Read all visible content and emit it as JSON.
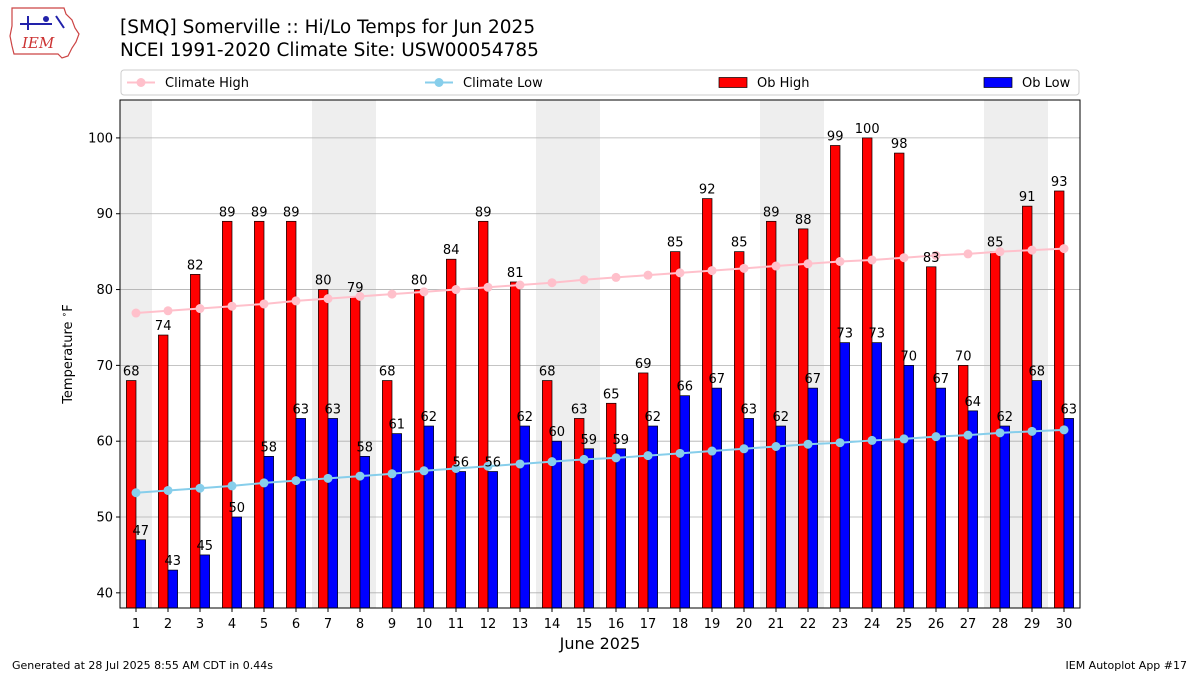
{
  "header": {
    "logo_text": "IEM",
    "title_line1": "[SMQ] Somerville :: Hi/Lo Temps for Jun 2025",
    "title_line2": "NCEI 1991-2020 Climate Site: USW00054785"
  },
  "footer": {
    "left": "Generated at 28 Jul 2025 8:55 AM CDT in 0.44s",
    "right": "IEM Autoplot App #17"
  },
  "colors": {
    "climate_high": "#ffc0cb",
    "climate_low": "#87ceeb",
    "ob_high": "#ff0000",
    "ob_low": "#0000ff",
    "weekend_band": "#eeeeee",
    "grid": "#b0b0b0"
  },
  "chart_data": {
    "type": "bar",
    "xlabel": "June 2025",
    "ylabel": "Temperature $^\\circ$F",
    "ylim": [
      38,
      105
    ],
    "yticks": [
      40,
      50,
      60,
      70,
      80,
      90,
      100
    ],
    "grid": "horizontal",
    "legend": "top, above plot",
    "x": [
      1,
      2,
      3,
      4,
      5,
      6,
      7,
      8,
      9,
      10,
      11,
      12,
      13,
      14,
      15,
      16,
      17,
      18,
      19,
      20,
      21,
      22,
      23,
      24,
      25,
      26,
      27,
      28,
      29,
      30
    ],
    "weekend_days": [
      1,
      7,
      8,
      14,
      15,
      21,
      22,
      28,
      29
    ],
    "series": [
      {
        "name": "Climate High",
        "kind": "line",
        "values": [
          76.9,
          77.2,
          77.5,
          77.8,
          78.1,
          78.5,
          78.8,
          79.1,
          79.4,
          79.7,
          80.0,
          80.3,
          80.6,
          80.9,
          81.3,
          81.6,
          81.9,
          82.2,
          82.5,
          82.8,
          83.1,
          83.4,
          83.7,
          83.9,
          84.2,
          84.5,
          84.7,
          85.0,
          85.2,
          85.4
        ]
      },
      {
        "name": "Climate Low",
        "kind": "line",
        "values": [
          53.2,
          53.5,
          53.8,
          54.1,
          54.5,
          54.8,
          55.1,
          55.4,
          55.7,
          56.1,
          56.4,
          56.7,
          57.0,
          57.3,
          57.6,
          57.8,
          58.1,
          58.4,
          58.7,
          59.0,
          59.3,
          59.6,
          59.8,
          60.1,
          60.3,
          60.6,
          60.8,
          61.1,
          61.3,
          61.5
        ]
      },
      {
        "name": "Ob High",
        "kind": "bar",
        "values": [
          68,
          74,
          82,
          89,
          89,
          89,
          80,
          79,
          68,
          80,
          84,
          89,
          81,
          68,
          63,
          65,
          69,
          85,
          92,
          85,
          89,
          88,
          99,
          100,
          98,
          83,
          70,
          85,
          91,
          93
        ]
      },
      {
        "name": "Ob Low",
        "kind": "bar",
        "values": [
          47,
          43,
          45,
          50,
          58,
          63,
          63,
          58,
          61,
          62,
          56,
          56,
          62,
          60,
          59,
          59,
          62,
          66,
          67,
          63,
          62,
          67,
          73,
          73,
          70,
          67,
          64,
          62,
          68,
          63
        ]
      }
    ]
  }
}
